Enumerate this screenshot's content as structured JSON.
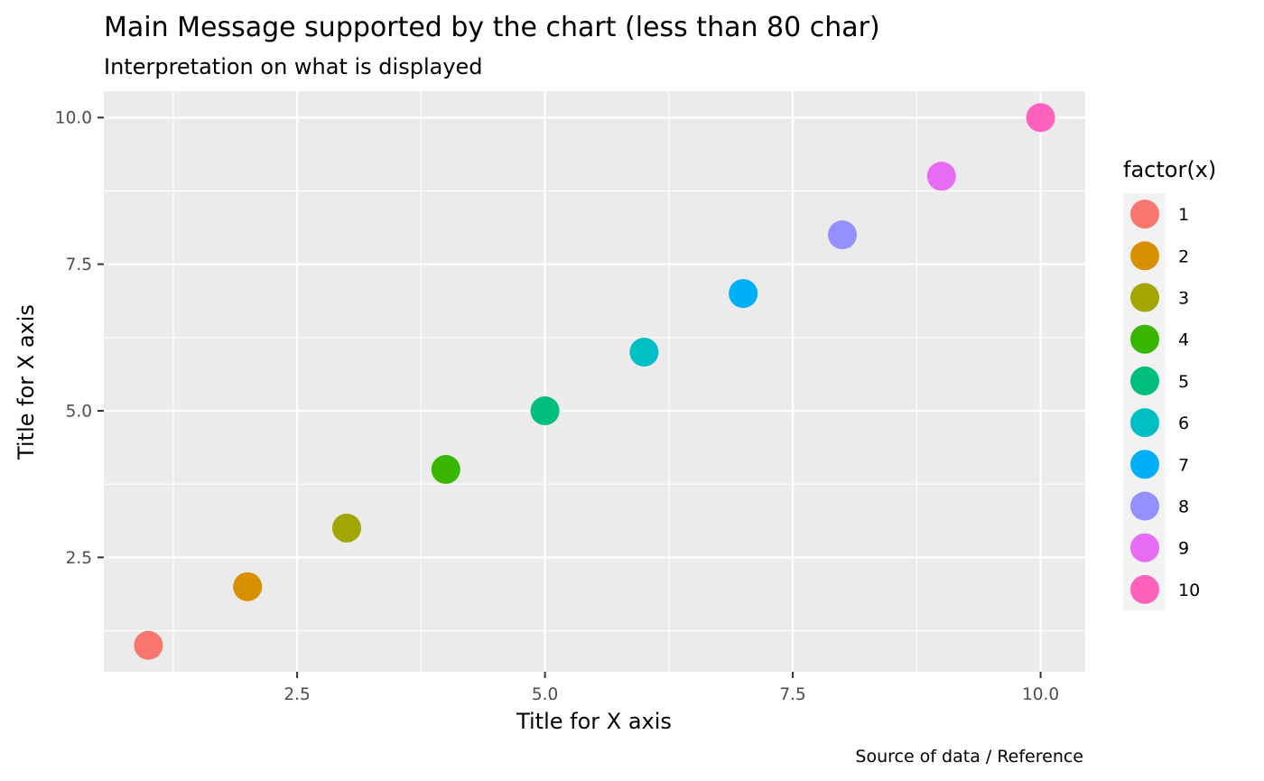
{
  "chart_data": {
    "type": "scatter",
    "title": "Main Message supported by the chart (less than 80 char)",
    "subtitle": "Interpretation on what is displayed",
    "xlabel": "Title for X axis",
    "ylabel": "Title for X axis",
    "caption": "Source of data / Reference",
    "xlim": [
      0.55,
      10.45
    ],
    "ylim": [
      0.55,
      10.45
    ],
    "x_ticks": [
      2.5,
      5.0,
      7.5,
      10.0
    ],
    "x_tick_labels": [
      "2.5",
      "5.0",
      "7.5",
      "10.0"
    ],
    "y_ticks": [
      2.5,
      5.0,
      7.5,
      10.0
    ],
    "y_tick_labels": [
      "2.5",
      "5.0",
      "7.5",
      "10.0"
    ],
    "grid": true,
    "legend": {
      "title": "factor(x)",
      "position": "right",
      "labels": [
        "1",
        "2",
        "3",
        "4",
        "5",
        "6",
        "7",
        "8",
        "9",
        "10"
      ]
    },
    "points": [
      {
        "x": 1,
        "y": 1,
        "group": "1",
        "color": "#F8766D"
      },
      {
        "x": 2,
        "y": 2,
        "group": "2",
        "color": "#D89000"
      },
      {
        "x": 3,
        "y": 3,
        "group": "3",
        "color": "#A3A500"
      },
      {
        "x": 4,
        "y": 4,
        "group": "4",
        "color": "#39B600"
      },
      {
        "x": 5,
        "y": 5,
        "group": "5",
        "color": "#00BF7D"
      },
      {
        "x": 6,
        "y": 6,
        "group": "6",
        "color": "#00BFC4"
      },
      {
        "x": 7,
        "y": 7,
        "group": "7",
        "color": "#00B0F6"
      },
      {
        "x": 8,
        "y": 8,
        "group": "8",
        "color": "#9590FF"
      },
      {
        "x": 9,
        "y": 9,
        "group": "9",
        "color": "#E76BF3"
      },
      {
        "x": 10,
        "y": 10,
        "group": "10",
        "color": "#FF62BC"
      }
    ]
  }
}
